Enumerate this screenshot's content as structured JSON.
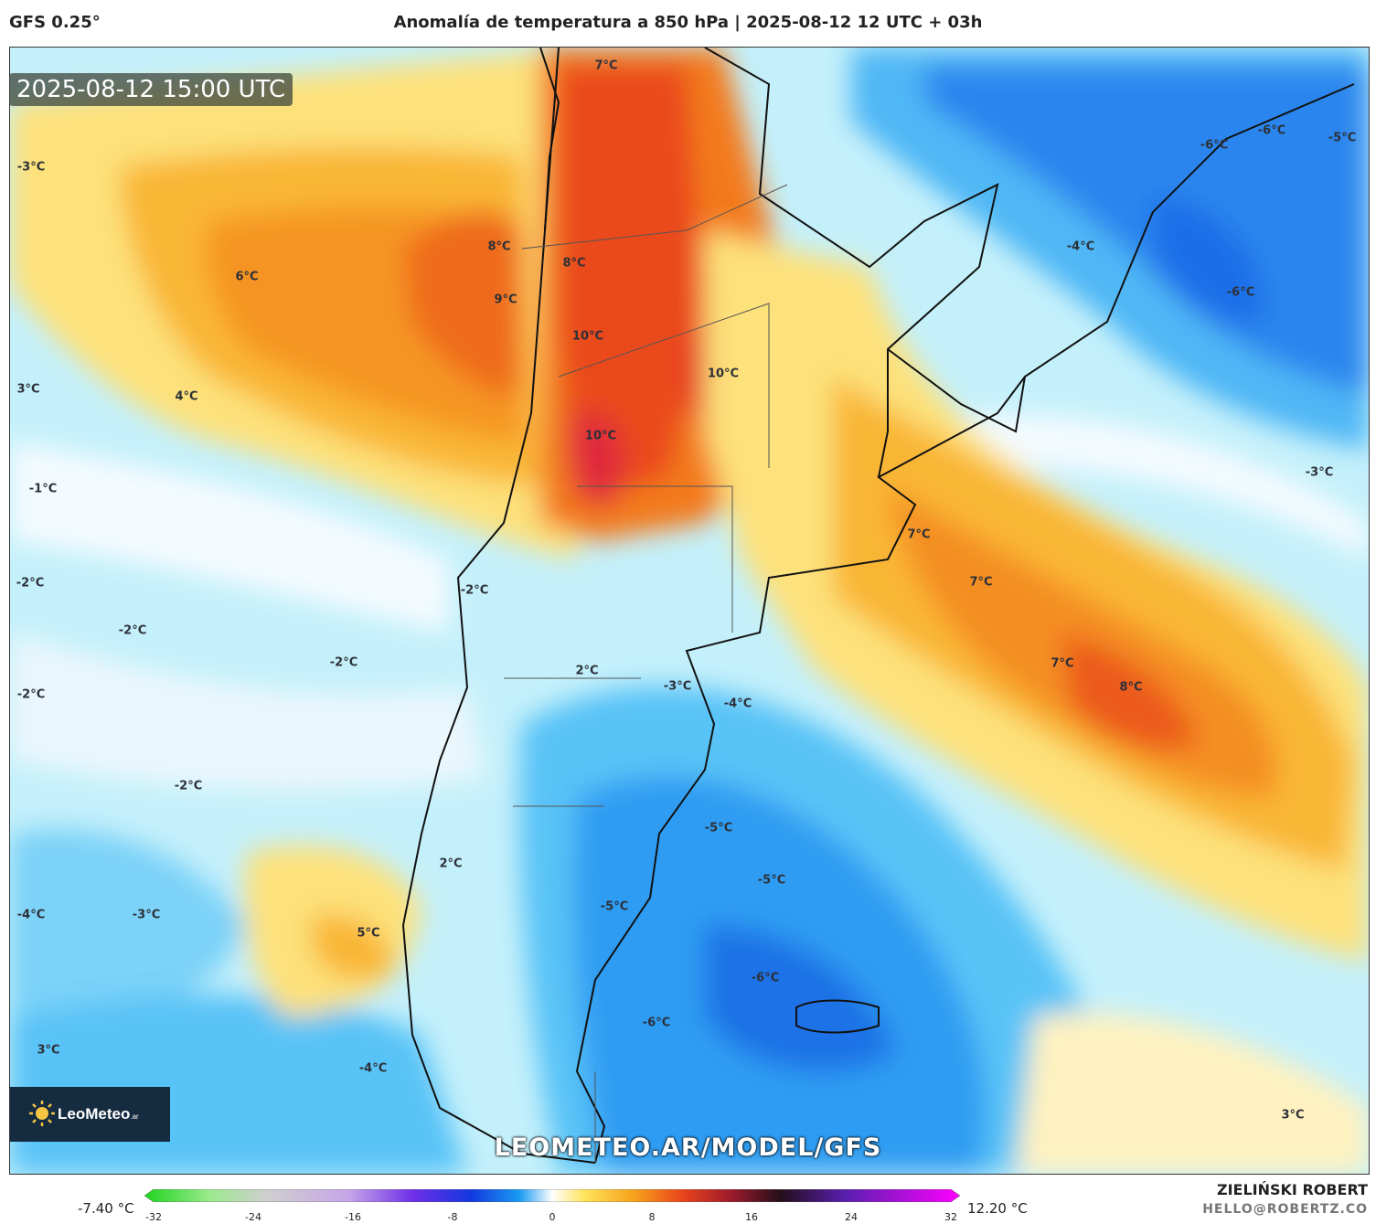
{
  "header": {
    "model": "GFS 0.25°",
    "title": "Anomalía de temperatura a 850 hPa | 2025-08-12 12 UTC + 03h"
  },
  "map": {
    "valid_time": "2025-08-12 15:00 UTC",
    "watermark": "LEOMETEO.AR/MODEL/GFS",
    "logo": {
      "name": "LeoMeteo",
      "suffix": ".ar"
    },
    "labels": [
      {
        "text": "7°C"
      },
      {
        "text": "8°C"
      },
      {
        "text": "9°C"
      },
      {
        "text": "8°C"
      },
      {
        "text": "10°C"
      },
      {
        "text": "10°C"
      },
      {
        "text": "10°C"
      },
      {
        "text": "6°C"
      },
      {
        "text": "-3°C"
      },
      {
        "text": "3°C"
      },
      {
        "text": "4°C"
      },
      {
        "text": "-1°C"
      },
      {
        "text": "-2°C"
      },
      {
        "text": "-2°C"
      },
      {
        "text": "-2°C"
      },
      {
        "text": "-2°C"
      },
      {
        "text": "-2°C"
      },
      {
        "text": "-2°C"
      },
      {
        "text": "2°C"
      },
      {
        "text": "-3°C"
      },
      {
        "text": "-4°C"
      },
      {
        "text": "-6°C"
      },
      {
        "text": "-6°C"
      },
      {
        "text": "-5°C"
      },
      {
        "text": "-4°C"
      },
      {
        "text": "-6°C"
      },
      {
        "text": "-3°C"
      },
      {
        "text": "7°C"
      },
      {
        "text": "7°C"
      },
      {
        "text": "7°C"
      },
      {
        "text": "8°C"
      },
      {
        "text": "-5°C"
      },
      {
        "text": "-5°C"
      },
      {
        "text": "-5°C"
      },
      {
        "text": "2°C"
      },
      {
        "text": "-4°C"
      },
      {
        "text": "-3°C"
      },
      {
        "text": "5°C"
      },
      {
        "text": "-6°C"
      },
      {
        "text": "-6°C"
      },
      {
        "text": "3°C"
      },
      {
        "text": "-4°C"
      },
      {
        "text": "3°C"
      }
    ]
  },
  "colorbar": {
    "min_label": "-7.40 °C",
    "max_label": "12.20 °C",
    "ticks": [
      "-32",
      "-24",
      "-16",
      "-8",
      "0",
      "8",
      "16",
      "24",
      "32"
    ],
    "range": [
      -32,
      32
    ]
  },
  "footer": {
    "author": "ZIELIŃSKI ROBERT",
    "email": "HELLO@ROBERTZ.CO"
  }
}
